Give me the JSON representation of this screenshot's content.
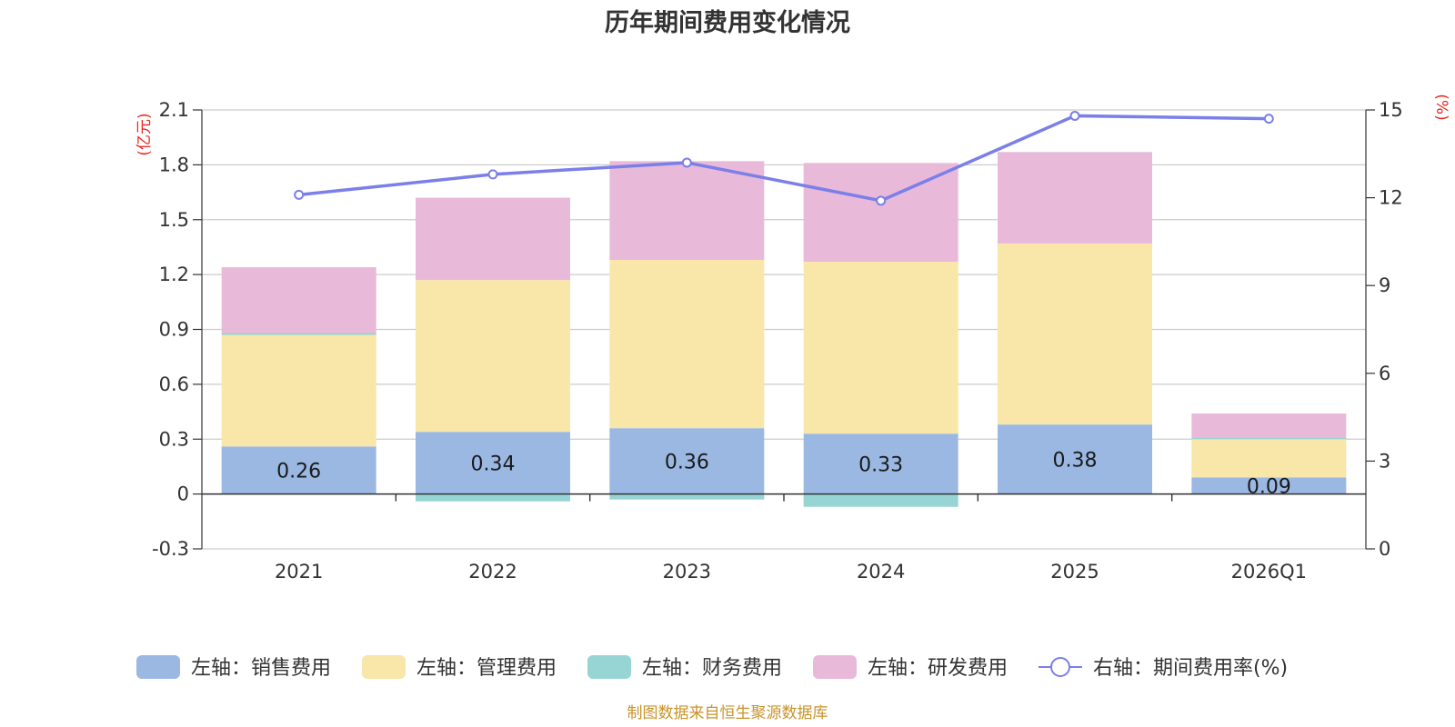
{
  "chart_data": {
    "type": "bar",
    "stacked": true,
    "title": "历年期间费用变化情况",
    "categories": [
      "2021",
      "2022",
      "2023",
      "2024",
      "2025",
      "2026Q1"
    ],
    "left_axis": {
      "unit": "(亿元)",
      "ylim": [
        -0.3,
        2.1
      ],
      "ticks": [
        "2.1",
        "1.8",
        "1.5",
        "1.2",
        "0.9",
        "0.6",
        "0.3",
        "0",
        "-0.3"
      ],
      "tick_values": [
        2.1,
        1.8,
        1.5,
        1.2,
        0.9,
        0.6,
        0.3,
        0,
        -0.3
      ]
    },
    "right_axis": {
      "unit": "(%)",
      "ylim": [
        0,
        15
      ],
      "ticks": [
        "15",
        "12",
        "9",
        "6",
        "3",
        "0"
      ],
      "tick_values": [
        15,
        12,
        9,
        6,
        3,
        0
      ]
    },
    "series": [
      {
        "name": "左轴：销售费用",
        "axis": "left",
        "color": "#9bb8e3",
        "values": [
          0.26,
          0.34,
          0.36,
          0.33,
          0.38,
          0.09
        ],
        "labels": [
          "0.26",
          "0.34",
          "0.36",
          "0.33",
          "0.38",
          "0.09"
        ]
      },
      {
        "name": "左轴：管理费用",
        "axis": "left",
        "color": "#f8e7a8",
        "values": [
          0.61,
          0.83,
          0.92,
          0.94,
          0.99,
          0.21
        ]
      },
      {
        "name": "左轴：财务费用",
        "axis": "left",
        "color": "#97d4d4",
        "values": [
          0.01,
          -0.04,
          -0.03,
          -0.07,
          0.0,
          0.01
        ]
      },
      {
        "name": "左轴：研发费用",
        "axis": "left",
        "color": "#e8b9d9",
        "values": [
          0.36,
          0.45,
          0.54,
          0.54,
          0.5,
          0.13
        ]
      },
      {
        "name": "右轴：期间费用率(%)",
        "axis": "right",
        "type": "line",
        "color": "#7b7fe8",
        "values": [
          12.1,
          12.8,
          13.2,
          11.9,
          14.8,
          14.7
        ]
      }
    ],
    "legend_position": "bottom",
    "grid": true
  },
  "source": "制图数据来自恒生聚源数据库"
}
